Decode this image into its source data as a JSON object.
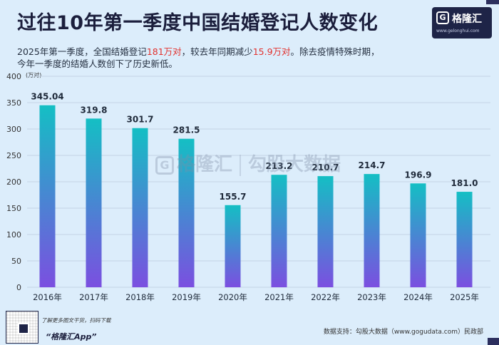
{
  "header": {
    "title": "过往10年第一季度中国结婚登记人数变化",
    "subtitle_line1_a": "2025年第一季度，全国结婚登记",
    "subtitle_line1_hl1": "181万对",
    "subtitle_line1_b": "，较去年同期减少",
    "subtitle_line1_hl2": "15.9万对",
    "subtitle_line1_c": "。除去疫情特殊时期，",
    "subtitle_line2": "今年一季度的结婚人数创下了历史新低。"
  },
  "logo": {
    "name": "格隆汇",
    "mark": "G",
    "url": "www.gelonghui.com"
  },
  "watermark": {
    "brand": "格隆汇",
    "sub": "www.gelonghui.com",
    "partner": "勾股大数据",
    "partner_url": "WWW.GOGUDATA.COM"
  },
  "footer": {
    "note": "了解更多图文干货，扫码下载",
    "app": "“格隆汇App”",
    "source": "数据支持：勾股大数据（www.gogudata.com）民政部"
  },
  "colors": {
    "bar_top": "#14bfc4",
    "bar_bottom": "#7b4fe0",
    "highlight": "#e2322e",
    "dark": "#1e2447"
  },
  "chart_data": {
    "type": "bar",
    "title": "过往10年第一季度中国结婚登记人数变化",
    "ylabel": "(万对)",
    "xlabel": "",
    "categories": [
      "2016年",
      "2017年",
      "2018年",
      "2019年",
      "2020年",
      "2021年",
      "2022年",
      "2023年",
      "2024年",
      "2025年"
    ],
    "values": [
      345.04,
      319.8,
      301.7,
      281.5,
      155.7,
      213.2,
      210.7,
      214.7,
      196.9,
      181.0
    ],
    "value_labels": [
      "345.04",
      "319.8",
      "301.7",
      "281.5",
      "155.7",
      "213.2",
      "210.7",
      "214.7",
      "196.9",
      "181.0"
    ],
    "ylim": [
      0,
      400
    ],
    "yticks": [
      0,
      50,
      100,
      150,
      200,
      250,
      300,
      350,
      400
    ],
    "grid": true,
    "legend": "none"
  }
}
